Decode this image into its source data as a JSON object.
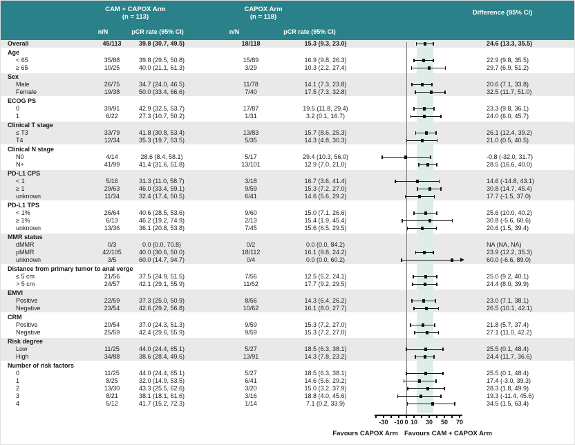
{
  "chart_data": {
    "type": "forest",
    "title": "pCR rate subgroup forest plot",
    "columns": {
      "arm1_title": "CAM + CAPOX Arm",
      "arm1_n": "(n = 113)",
      "arm2_title": "CAPOX Arm",
      "arm2_n": "(n = 118)",
      "nN_header": "n/N",
      "pcr_header": "pCR rate (95% CI)",
      "diff_header": "Difference (95% CI)"
    },
    "overall": {
      "label": "Overall",
      "a_nN": "45/113",
      "a_pcr": "39.8 (30.7, 49.5)",
      "b_nN": "18/118",
      "b_pcr": "15.3 (9.3, 23.0)",
      "diff": "24.6 (13.3, 35.5)",
      "est": 24.6,
      "lo": 13.3,
      "hi": 35.5
    },
    "groups": [
      {
        "label": "Age",
        "rows": [
          {
            "label": "< 65",
            "a_nN": "35/88",
            "a_pcr": "39.8 (29.5, 50.8)",
            "b_nN": "15/89",
            "b_pcr": "16.9 (9.8, 26.3)",
            "diff": "22.9 (9.8, 35.5)",
            "est": 22.9,
            "lo": 9.8,
            "hi": 35.5
          },
          {
            "label": "≥ 65",
            "a_nN": "10/25",
            "a_pcr": "40.0 (21.1, 61.3)",
            "b_nN": "3/29",
            "b_pcr": "10.3 (2.2, 27.4)",
            "diff": "29.7 (6.9, 51.2)",
            "est": 29.7,
            "lo": 6.9,
            "hi": 51.2
          }
        ]
      },
      {
        "label": "Sex",
        "rows": [
          {
            "label": "Male",
            "a_nN": "26/75",
            "a_pcr": "34.7 (24.0, 46.5)",
            "b_nN": "11/78",
            "b_pcr": "14.1 (7.3, 23.8)",
            "diff": "20.6 (7.1, 33.8)",
            "est": 20.6,
            "lo": 7.1,
            "hi": 33.8
          },
          {
            "label": "Female",
            "a_nN": "19/38",
            "a_pcr": "50.0 (33.4, 66.6)",
            "b_nN": "7/40",
            "b_pcr": "17.5 (7.3, 32.8)",
            "diff": "32.5 (11.7, 51.0)",
            "est": 32.5,
            "lo": 11.7,
            "hi": 51.0
          }
        ]
      },
      {
        "label": "ECOG PS",
        "rows": [
          {
            "label": "0",
            "a_nN": "39/91",
            "a_pcr": "42.9 (32.5, 53.7)",
            "b_nN": "17/87",
            "b_pcr": "19.5 (11.8, 29.4)",
            "diff": "23.3 (9.8, 36.1)",
            "est": 23.3,
            "lo": 9.8,
            "hi": 36.1
          },
          {
            "label": "1",
            "a_nN": "6/22",
            "a_pcr": "27.3 (10.7, 50.2)",
            "b_nN": "1/31",
            "b_pcr": "3.2 (0.1, 16.7)",
            "diff": "24.0 (6.0, 45.7)",
            "est": 24.0,
            "lo": 6.0,
            "hi": 45.7
          }
        ]
      },
      {
        "label": "Clinical T stage",
        "rows": [
          {
            "label": "≤ T3",
            "a_nN": "33/79",
            "a_pcr": "41.8 (30.8, 53.4)",
            "b_nN": "13/83",
            "b_pcr": "15.7 (8.6, 25.3)",
            "diff": "26.1 (12.4, 39.2)",
            "est": 26.1,
            "lo": 12.4,
            "hi": 39.2
          },
          {
            "label": "T4",
            "a_nN": "12/34",
            "a_pcr": "35.3 (19.7, 53.5)",
            "b_nN": "5/35",
            "b_pcr": "14.3 (4.8, 30.3)",
            "diff": "21.0 (0.5, 40.5)",
            "est": 21.0,
            "lo": 0.5,
            "hi": 40.5
          }
        ]
      },
      {
        "label": "Clinical N stage",
        "rows": [
          {
            "label": "N0",
            "a_nN": "4/14",
            "a_pcr": "28.6 (8.4, 58.1)",
            "b_nN": "5/17",
            "b_pcr": "29.4 (10.3, 56.0)",
            "diff": "-0.8 (-32.0, 31.7)",
            "est": -0.8,
            "lo": -32.0,
            "hi": 31.7
          },
          {
            "label": "N+",
            "a_nN": "41/99",
            "a_pcr": "41.4 (31.6, 51.8)",
            "b_nN": "13/101",
            "b_pcr": "12.9 (7.0, 21.0)",
            "diff": "28.5 (16.6, 40.0)",
            "est": 28.5,
            "lo": 16.6,
            "hi": 40.0
          }
        ]
      },
      {
        "label": "PD-L1 CPS",
        "rows": [
          {
            "label": "< 1",
            "a_nN": "5/16",
            "a_pcr": "31.3 (11.0, 58.7)",
            "b_nN": "3/18",
            "b_pcr": "16.7 (3.6, 41.4)",
            "diff": "14.6 (-14.8, 43.1)",
            "est": 14.6,
            "lo": -14.8,
            "hi": 43.1
          },
          {
            "label": "≥ 1",
            "a_nN": "29/63",
            "a_pcr": "46.0 (33.4, 59.1)",
            "b_nN": "9/59",
            "b_pcr": "15.3 (7.2, 27.0)",
            "diff": "30.8 (14.7, 45.4)",
            "est": 30.8,
            "lo": 14.7,
            "hi": 45.4
          },
          {
            "label": "unknown",
            "a_nN": "11/34",
            "a_pcr": "32.4 (17.4, 50.5)",
            "b_nN": "6/41",
            "b_pcr": "14.6 (5.6, 29.2)",
            "diff": "17.7 (-1.5, 37.0)",
            "est": 17.7,
            "lo": -1.5,
            "hi": 37.0
          }
        ]
      },
      {
        "label": "PD-L1 TPS",
        "rows": [
          {
            "label": "< 1%",
            "a_nN": "26/64",
            "a_pcr": "40.6 (28.5, 53.6)",
            "b_nN": "9/60",
            "b_pcr": "15.0 (7.1, 26.6)",
            "diff": "25.6 (10.0, 40.2)",
            "est": 25.6,
            "lo": 10.0,
            "hi": 40.2
          },
          {
            "label": "≥ 1%",
            "a_nN": "6/13",
            "a_pcr": "46.2 (19.2, 74.9)",
            "b_nN": "2/13",
            "b_pcr": "15.4 (1.9, 45.4)",
            "diff": "30.8 (-5.6, 60.6)",
            "est": 30.8,
            "lo": -5.6,
            "hi": 60.6
          },
          {
            "label": "unknown",
            "a_nN": "13/36",
            "a_pcr": "36.1 (20.8, 53.8)",
            "b_nN": "7/45",
            "b_pcr": "15.6 (6.5, 29.5)",
            "diff": "20.6 (1.5, 39.4)",
            "est": 20.6,
            "lo": 1.5,
            "hi": 39.4
          }
        ]
      },
      {
        "label": "MMR status",
        "rows": [
          {
            "label": "dMMR",
            "a_nN": "0/3",
            "a_pcr": "0.0 (0.0, 70.8)",
            "b_nN": "0/2",
            "b_pcr": "0.0 (0.0, 84.2)",
            "diff": "NA (NA, NA)",
            "est": null,
            "lo": null,
            "hi": null
          },
          {
            "label": "pMMR",
            "a_nN": "42/105",
            "a_pcr": "40.0 (30.6, 50.0)",
            "b_nN": "18/112",
            "b_pcr": "16.1 (9.8, 24.2)",
            "diff": "23.9 (12.2, 35.3)",
            "est": 23.9,
            "lo": 12.2,
            "hi": 35.3
          },
          {
            "label": "unknown",
            "a_nN": "3/5",
            "a_pcr": "60.0 (14.7, 94.7)",
            "b_nN": "0/4",
            "b_pcr": "0.0 (0.0, 60.2)",
            "diff": "60.0 (-6.6, 89.0)",
            "est": 60.0,
            "lo": -6.6,
            "hi": 89.0,
            "arrow_right": true
          }
        ]
      },
      {
        "label": "Distance from primary tumor to anal verge",
        "rows": [
          {
            "label": "≤ 5 cm",
            "a_nN": "21/56",
            "a_pcr": "37.5 (24.9, 51.5)",
            "b_nN": "7/56",
            "b_pcr": "12.5 (5.2, 24.1)",
            "diff": "25.0 (9.2, 40.1)",
            "est": 25.0,
            "lo": 9.2,
            "hi": 40.1
          },
          {
            "label": "> 5 cm",
            "a_nN": "24/57",
            "a_pcr": "42.1 (29.1, 55.9)",
            "b_nN": "11/62",
            "b_pcr": "17.7 (9.2, 29.5)",
            "diff": "24.4 (8.0, 39.9)",
            "est": 24.4,
            "lo": 8.0,
            "hi": 39.9
          }
        ]
      },
      {
        "label": "EMVI",
        "rows": [
          {
            "label": "Positive",
            "a_nN": "22/59",
            "a_pcr": "37.3 (25.0, 50.9)",
            "b_nN": "8/56",
            "b_pcr": "14.3 (6.4, 26.2)",
            "diff": "23.0 (7.1, 38.1)",
            "est": 23.0,
            "lo": 7.1,
            "hi": 38.1
          },
          {
            "label": "Negative",
            "a_nN": "23/54",
            "a_pcr": "42.6 (29.2, 56.8)",
            "b_nN": "10/62",
            "b_pcr": "16.1 (8.0, 27.7)",
            "diff": "26.5 (10.1, 42.1)",
            "est": 26.5,
            "lo": 10.1,
            "hi": 42.1
          }
        ]
      },
      {
        "label": "CRM",
        "rows": [
          {
            "label": "Positive",
            "a_nN": "20/54",
            "a_pcr": "37.0 (24.3, 51.3)",
            "b_nN": "9/59",
            "b_pcr": "15.3 (7.2, 27.0)",
            "diff": "21.8 (5.7, 37.4)",
            "est": 21.8,
            "lo": 5.7,
            "hi": 37.4
          },
          {
            "label": "Negative",
            "a_nN": "25/59",
            "a_pcr": "42.4 (29.6, 55.9)",
            "b_nN": "9/59",
            "b_pcr": "15.3 (7.2, 27.0)",
            "diff": "27.1 (11.0, 42.2)",
            "est": 27.1,
            "lo": 11.0,
            "hi": 42.2
          }
        ]
      },
      {
        "label": "Risk degree",
        "rows": [
          {
            "label": "Low",
            "a_nN": "11/25",
            "a_pcr": "44.0 (24.4, 65.1)",
            "b_nN": "5/27",
            "b_pcr": "18.5 (6.3, 38.1)",
            "diff": "25.5 (0.1, 48.4)",
            "est": 25.5,
            "lo": 0.1,
            "hi": 48.4
          },
          {
            "label": "High",
            "a_nN": "34/88",
            "a_pcr": "38.6 (28.4, 49.6)",
            "b_nN": "13/91",
            "b_pcr": "14.3 (7.8, 23.2)",
            "diff": "24.4 (11.7, 36.6)",
            "est": 24.4,
            "lo": 11.7,
            "hi": 36.6
          }
        ]
      },
      {
        "label": "Number of risk factors",
        "rows": [
          {
            "label": "0",
            "a_nN": "11/25",
            "a_pcr": "44.0 (24.4, 65.1)",
            "b_nN": "5/27",
            "b_pcr": "18.5 (6.3, 38.1)",
            "diff": "25.5 (0.1, 48.4)",
            "est": 25.5,
            "lo": 0.1,
            "hi": 48.4
          },
          {
            "label": "1",
            "a_nN": "8/25",
            "a_pcr": "32.0 (14.9, 53.5)",
            "b_nN": "6/41",
            "b_pcr": "14.6 (5.6, 29.2)",
            "diff": "17.4 (-3.0, 39.3)",
            "est": 17.4,
            "lo": -3.0,
            "hi": 39.3
          },
          {
            "label": "2",
            "a_nN": "13/30",
            "a_pcr": "43.3 (25.5, 62.6)",
            "b_nN": "3/20",
            "b_pcr": "15.0 (3.2, 37.9)",
            "diff": "28.3 (1.8, 49.9)",
            "est": 28.3,
            "lo": 1.8,
            "hi": 49.9
          },
          {
            "label": "3",
            "a_nN": "8/21",
            "a_pcr": "38.1 (18.1, 61.6)",
            "b_nN": "3/16",
            "b_pcr": "18.8 (4.0, 45.6)",
            "diff": "19.3 (-11.4, 45.6)",
            "est": 19.3,
            "lo": -11.4,
            "hi": 45.6
          },
          {
            "label": "4",
            "a_nN": "5/12",
            "a_pcr": "41.7 (15.2, 72.3)",
            "b_nN": "1/14",
            "b_pcr": "7.1 (0.2, 33.9)",
            "diff": "34.5 (1.5, 63.4)",
            "est": 34.5,
            "lo": 1.5,
            "hi": 63.4
          }
        ]
      }
    ],
    "axis": {
      "tick_marks": [
        -40,
        -30,
        -20,
        -10,
        0,
        10,
        20,
        30,
        40,
        50,
        60,
        70
      ],
      "tick_labels": [
        -30,
        -10,
        0,
        10,
        30,
        50,
        70
      ],
      "min": -42,
      "max": 74,
      "favours_left": "Favours CAPOX Arm",
      "favours_right": "Favours CAM + CAPOX Arm"
    },
    "band": {
      "lo": 13.3,
      "hi": 35.5
    },
    "colors": {
      "header_bg": "#2a8189",
      "row_alt": "#e9e9e9",
      "band": "#ddeee7",
      "ref_line": "#7a7a7a",
      "ink": "#141414"
    }
  }
}
